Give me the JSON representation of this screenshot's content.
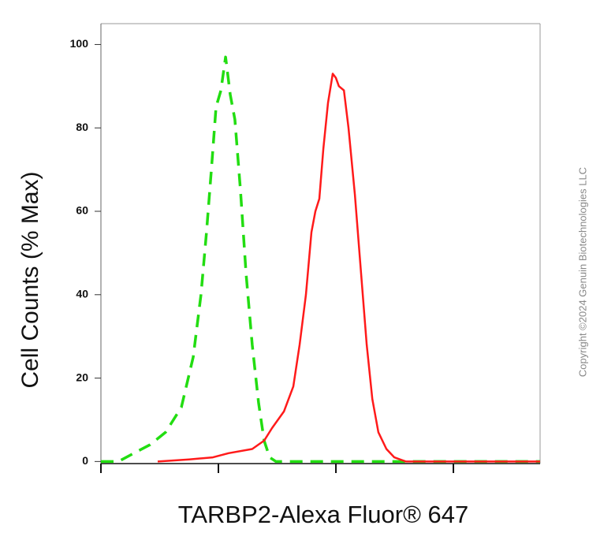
{
  "chart_data": {
    "type": "line",
    "xlabel": "TARBP2-Alexa Fluor® 647",
    "ylabel": "Cell Counts (% Max)",
    "annotation": "Copyright ©2024 Genuin Biotechnologies LLC",
    "xlog": true,
    "xlim": [
      1,
      5470
    ],
    "xticks": [
      1,
      10,
      100,
      1000
    ],
    "ylim": [
      -0.5,
      105
    ],
    "yticks": [
      0,
      20,
      40,
      60,
      80,
      100
    ],
    "series": [
      {
        "color": "#22dd11",
        "dashed": true,
        "x": [
          1,
          1.41,
          1.91,
          2.61,
          3.55,
          4.84,
          6.1,
          7.11,
          7.92,
          8.71,
          9.55,
          10.5,
          11.5,
          12.6,
          13.8,
          15.4,
          17.2,
          19.4,
          22,
          24.5,
          27.3,
          30.9,
          66.9,
          5470
        ],
        "values": [
          0,
          0,
          2,
          4,
          7,
          13,
          25,
          40,
          55,
          70,
          85,
          89,
          97,
          88,
          82,
          65,
          45,
          28,
          14,
          5,
          1,
          0,
          0,
          0
        ]
      },
      {
        "color": "#ff1a1a",
        "dashed": false,
        "x": [
          3.04,
          5.64,
          8.97,
          12.2,
          19.4,
          24.5,
          28.6,
          36.1,
          43.4,
          49.1,
          55.6,
          61.9,
          66.9,
          72.3,
          78.2,
          85.7,
          94,
          100,
          106,
          117,
          128,
          145,
          164,
          183,
          204,
          230,
          269,
          314,
          395,
          5470
        ],
        "values": [
          0,
          0.5,
          1,
          2,
          3,
          5,
          8,
          12,
          18,
          28,
          40,
          55,
          60,
          63,
          75,
          86,
          93,
          92,
          90,
          89,
          80,
          64,
          45,
          28,
          15,
          7,
          3,
          1,
          0,
          0
        ]
      }
    ]
  }
}
